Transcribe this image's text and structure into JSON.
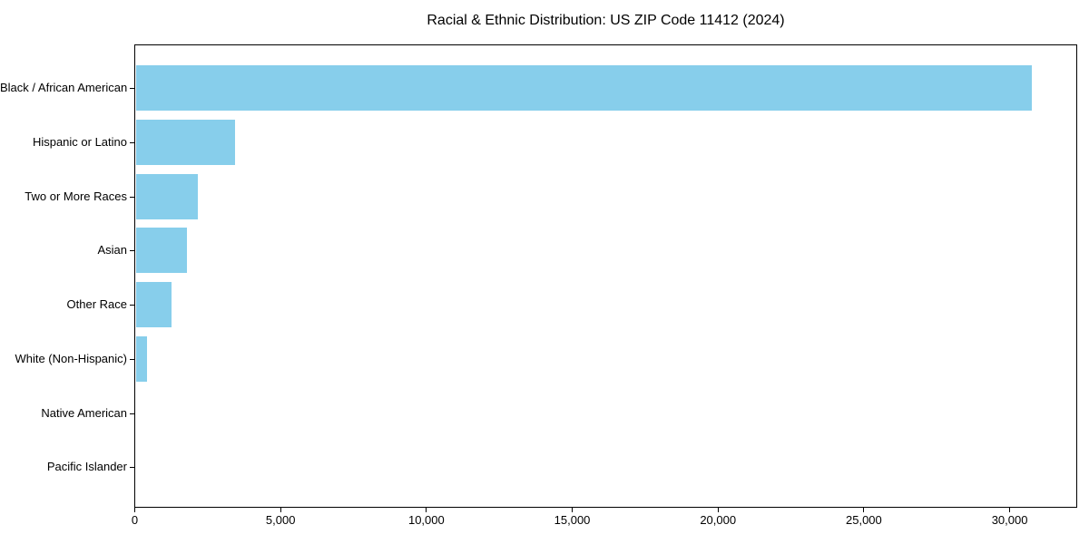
{
  "chart_data": {
    "type": "bar",
    "orientation": "horizontal",
    "title": "Racial & Ethnic Distribution: US ZIP Code 11412 (2024)",
    "categories": [
      "Black / African American",
      "Hispanic or Latino",
      "Two or More Races",
      "Asian",
      "Other Race",
      "White (Non-Hispanic)",
      "Native American",
      "Pacific Islander"
    ],
    "values": [
      30750,
      3430,
      2150,
      1800,
      1260,
      420,
      0,
      0
    ],
    "xlabel": "",
    "ylabel": "",
    "xlim": [
      0,
      32300
    ],
    "x_ticks": [
      0,
      5000,
      10000,
      15000,
      20000,
      25000,
      30000
    ],
    "x_tick_labels": [
      "0",
      "5,000",
      "10,000",
      "15,000",
      "20,000",
      "25,000",
      "30,000"
    ],
    "bar_color": "#87CEEB",
    "background_color": "#FFFFFF",
    "axis_color": "#000000",
    "grid": false,
    "legend": null
  }
}
